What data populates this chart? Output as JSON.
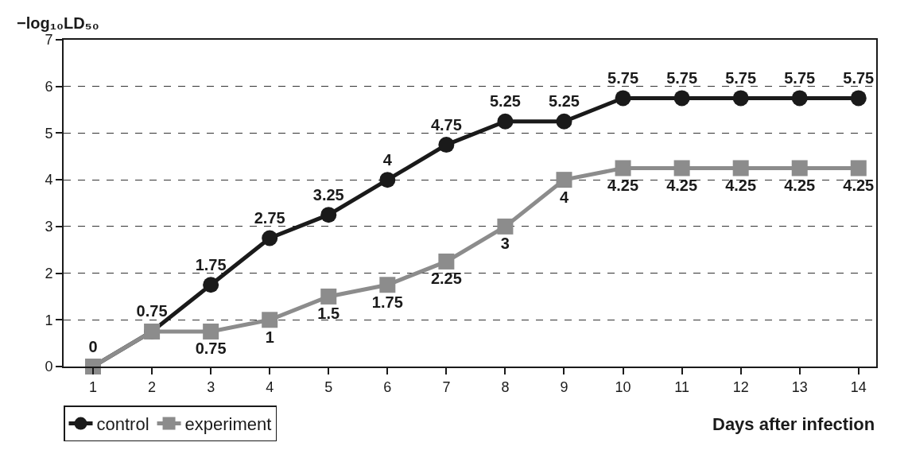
{
  "chart_data": {
    "type": "line",
    "ylabel": "−log₁₀LD₅₀",
    "xlabel": "Days after infection",
    "x": [
      1,
      2,
      3,
      4,
      5,
      6,
      7,
      8,
      9,
      10,
      11,
      12,
      13,
      14
    ],
    "series": [
      {
        "name": "control",
        "color": "#1a1a1a",
        "marker": "circle",
        "values": [
          0,
          0.75,
          1.75,
          2.75,
          3.25,
          4,
          4.75,
          5.25,
          5.25,
          5.75,
          5.75,
          5.75,
          5.75,
          5.75
        ],
        "value_labels": [
          "0",
          "0.75",
          "1.75",
          "2.75",
          "3.25",
          "4",
          "4.75",
          "5.25",
          "5.25",
          "5.75",
          "5.75",
          "5.75",
          "5.75",
          "5.75"
        ]
      },
      {
        "name": "experiment",
        "color": "#8c8c8c",
        "marker": "square",
        "values": [
          0,
          0.75,
          0.75,
          1,
          1.5,
          1.75,
          2.25,
          3,
          4,
          4.25,
          4.25,
          4.25,
          4.25,
          4.25
        ],
        "value_labels": [
          null,
          null,
          "0.75",
          "1",
          "1.5",
          "1.75",
          "2.25",
          "3",
          "4",
          "4.25",
          "4.25",
          "4.25",
          "4.25",
          "4.25"
        ]
      }
    ],
    "xlim": [
      0.5,
      14.3
    ],
    "xticks": [
      1,
      2,
      3,
      4,
      5,
      6,
      7,
      8,
      9,
      10,
      11,
      12,
      13,
      14
    ],
    "ylim": [
      0,
      7
    ],
    "yticks": [
      0,
      1,
      2,
      3,
      4,
      5,
      6,
      7
    ],
    "grid": "y",
    "legend": "bottom left",
    "line_style": "solid"
  }
}
